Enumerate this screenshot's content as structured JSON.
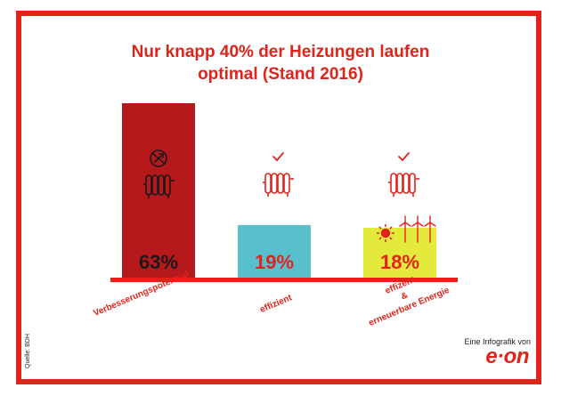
{
  "title_lines": [
    "Nur knapp 40% der Heizungen laufen",
    "optimal (Stand 2016)"
  ],
  "source": "Quelle: BDH",
  "tagline": "Eine Infografik von",
  "brand": "e·on",
  "colors": {
    "accent": "#e2231a",
    "bar_verbesserung": "#b5191c",
    "bar_effizient": "#57c0cc",
    "bar_erneuerbar": "#e4ea3c"
  },
  "chart_data": {
    "type": "bar",
    "title": "Nur knapp 40% der Heizungen laufen optimal (Stand 2016)",
    "categories": [
      "Verbesserungspotenzial",
      "effizient",
      "effizent & erneuerbare Energie"
    ],
    "category_lines": [
      [
        "Verbesserungspotenzial"
      ],
      [
        "effizient"
      ],
      [
        "effizent",
        "&",
        "erneuerbare Energie"
      ]
    ],
    "values": [
      63,
      19,
      18
    ],
    "value_labels": [
      "63%",
      "19%",
      "18%"
    ],
    "unit": "%",
    "icons": [
      [
        "radiator-icon",
        "wrench-circle-icon"
      ],
      [
        "radiator-icon",
        "checkmark-icon"
      ],
      [
        "radiator-icon",
        "checkmark-icon",
        "sun-icon",
        "wind-turbine-icon"
      ]
    ],
    "ylim": [
      0,
      63
    ],
    "grid": false,
    "legend": "none"
  }
}
